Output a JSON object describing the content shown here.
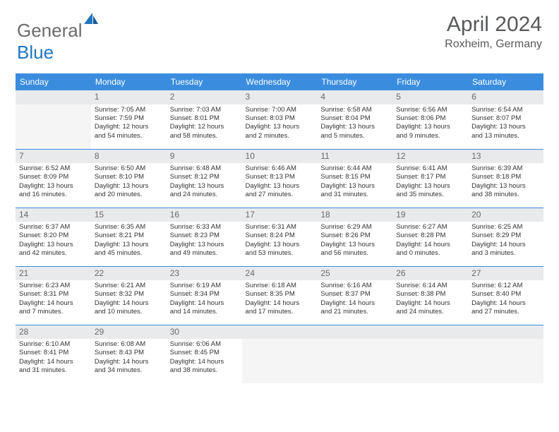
{
  "brand": {
    "part1": "General",
    "part2": "Blue"
  },
  "title": "April 2024",
  "location": "Roxheim, Germany",
  "colors": {
    "header_bg": "#3a8dde",
    "header_text": "#ffffff",
    "daynum_bg": "#e9eaeb",
    "border": "#3a8dde",
    "brand_gray": "#6b6b6b",
    "brand_blue": "#2176c0"
  },
  "day_headers": [
    "Sunday",
    "Monday",
    "Tuesday",
    "Wednesday",
    "Thursday",
    "Friday",
    "Saturday"
  ],
  "weeks": [
    [
      {
        "n": "",
        "lines": []
      },
      {
        "n": "1",
        "lines": [
          "Sunrise: 7:05 AM",
          "Sunset: 7:59 PM",
          "Daylight: 12 hours",
          "and 54 minutes."
        ]
      },
      {
        "n": "2",
        "lines": [
          "Sunrise: 7:03 AM",
          "Sunset: 8:01 PM",
          "Daylight: 12 hours",
          "and 58 minutes."
        ]
      },
      {
        "n": "3",
        "lines": [
          "Sunrise: 7:00 AM",
          "Sunset: 8:03 PM",
          "Daylight: 13 hours",
          "and 2 minutes."
        ]
      },
      {
        "n": "4",
        "lines": [
          "Sunrise: 6:58 AM",
          "Sunset: 8:04 PM",
          "Daylight: 13 hours",
          "and 5 minutes."
        ]
      },
      {
        "n": "5",
        "lines": [
          "Sunrise: 6:56 AM",
          "Sunset: 8:06 PM",
          "Daylight: 13 hours",
          "and 9 minutes."
        ]
      },
      {
        "n": "6",
        "lines": [
          "Sunrise: 6:54 AM",
          "Sunset: 8:07 PM",
          "Daylight: 13 hours",
          "and 13 minutes."
        ]
      }
    ],
    [
      {
        "n": "7",
        "lines": [
          "Sunrise: 6:52 AM",
          "Sunset: 8:09 PM",
          "Daylight: 13 hours",
          "and 16 minutes."
        ]
      },
      {
        "n": "8",
        "lines": [
          "Sunrise: 6:50 AM",
          "Sunset: 8:10 PM",
          "Daylight: 13 hours",
          "and 20 minutes."
        ]
      },
      {
        "n": "9",
        "lines": [
          "Sunrise: 6:48 AM",
          "Sunset: 8:12 PM",
          "Daylight: 13 hours",
          "and 24 minutes."
        ]
      },
      {
        "n": "10",
        "lines": [
          "Sunrise: 6:46 AM",
          "Sunset: 8:13 PM",
          "Daylight: 13 hours",
          "and 27 minutes."
        ]
      },
      {
        "n": "11",
        "lines": [
          "Sunrise: 6:44 AM",
          "Sunset: 8:15 PM",
          "Daylight: 13 hours",
          "and 31 minutes."
        ]
      },
      {
        "n": "12",
        "lines": [
          "Sunrise: 6:41 AM",
          "Sunset: 8:17 PM",
          "Daylight: 13 hours",
          "and 35 minutes."
        ]
      },
      {
        "n": "13",
        "lines": [
          "Sunrise: 6:39 AM",
          "Sunset: 8:18 PM",
          "Daylight: 13 hours",
          "and 38 minutes."
        ]
      }
    ],
    [
      {
        "n": "14",
        "lines": [
          "Sunrise: 6:37 AM",
          "Sunset: 8:20 PM",
          "Daylight: 13 hours",
          "and 42 minutes."
        ]
      },
      {
        "n": "15",
        "lines": [
          "Sunrise: 6:35 AM",
          "Sunset: 8:21 PM",
          "Daylight: 13 hours",
          "and 45 minutes."
        ]
      },
      {
        "n": "16",
        "lines": [
          "Sunrise: 6:33 AM",
          "Sunset: 8:23 PM",
          "Daylight: 13 hours",
          "and 49 minutes."
        ]
      },
      {
        "n": "17",
        "lines": [
          "Sunrise: 6:31 AM",
          "Sunset: 8:24 PM",
          "Daylight: 13 hours",
          "and 53 minutes."
        ]
      },
      {
        "n": "18",
        "lines": [
          "Sunrise: 6:29 AM",
          "Sunset: 8:26 PM",
          "Daylight: 13 hours",
          "and 56 minutes."
        ]
      },
      {
        "n": "19",
        "lines": [
          "Sunrise: 6:27 AM",
          "Sunset: 8:28 PM",
          "Daylight: 14 hours",
          "and 0 minutes."
        ]
      },
      {
        "n": "20",
        "lines": [
          "Sunrise: 6:25 AM",
          "Sunset: 8:29 PM",
          "Daylight: 14 hours",
          "and 3 minutes."
        ]
      }
    ],
    [
      {
        "n": "21",
        "lines": [
          "Sunrise: 6:23 AM",
          "Sunset: 8:31 PM",
          "Daylight: 14 hours",
          "and 7 minutes."
        ]
      },
      {
        "n": "22",
        "lines": [
          "Sunrise: 6:21 AM",
          "Sunset: 8:32 PM",
          "Daylight: 14 hours",
          "and 10 minutes."
        ]
      },
      {
        "n": "23",
        "lines": [
          "Sunrise: 6:19 AM",
          "Sunset: 8:34 PM",
          "Daylight: 14 hours",
          "and 14 minutes."
        ]
      },
      {
        "n": "24",
        "lines": [
          "Sunrise: 6:18 AM",
          "Sunset: 8:35 PM",
          "Daylight: 14 hours",
          "and 17 minutes."
        ]
      },
      {
        "n": "25",
        "lines": [
          "Sunrise: 6:16 AM",
          "Sunset: 8:37 PM",
          "Daylight: 14 hours",
          "and 21 minutes."
        ]
      },
      {
        "n": "26",
        "lines": [
          "Sunrise: 6:14 AM",
          "Sunset: 8:38 PM",
          "Daylight: 14 hours",
          "and 24 minutes."
        ]
      },
      {
        "n": "27",
        "lines": [
          "Sunrise: 6:12 AM",
          "Sunset: 8:40 PM",
          "Daylight: 14 hours",
          "and 27 minutes."
        ]
      }
    ],
    [
      {
        "n": "28",
        "lines": [
          "Sunrise: 6:10 AM",
          "Sunset: 8:41 PM",
          "Daylight: 14 hours",
          "and 31 minutes."
        ]
      },
      {
        "n": "29",
        "lines": [
          "Sunrise: 6:08 AM",
          "Sunset: 8:43 PM",
          "Daylight: 14 hours",
          "and 34 minutes."
        ]
      },
      {
        "n": "30",
        "lines": [
          "Sunrise: 6:06 AM",
          "Sunset: 8:45 PM",
          "Daylight: 14 hours",
          "and 38 minutes."
        ]
      },
      {
        "n": "",
        "lines": []
      },
      {
        "n": "",
        "lines": []
      },
      {
        "n": "",
        "lines": []
      },
      {
        "n": "",
        "lines": []
      }
    ]
  ]
}
